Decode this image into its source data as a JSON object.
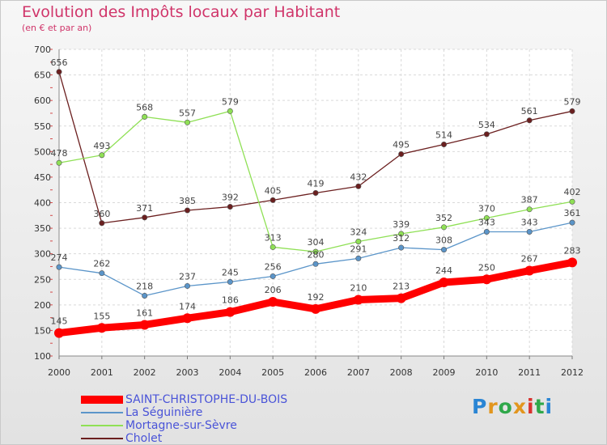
{
  "header": {
    "title": "Evolution des Impôts locaux par Habitant",
    "subtitle": "(en € et par an)"
  },
  "logo": {
    "text": "Proxiti",
    "letters": [
      "P",
      "r",
      "o",
      "x",
      "i",
      "t",
      "i"
    ],
    "colors": [
      "#2a85d4",
      "#e2961e",
      "#2fa84a",
      "#e2961e",
      "#d8322e",
      "#2fa84a",
      "#2a85d4"
    ]
  },
  "chart_data": {
    "type": "line",
    "title": "Evolution des Impôts locaux par Habitant",
    "subtitle": "(en € et par an)",
    "xlabel": "",
    "ylabel": "",
    "x": [
      "2000",
      "2001",
      "2002",
      "2003",
      "2004",
      "2005",
      "2006",
      "2007",
      "2008",
      "2009",
      "2010",
      "2011",
      "2012"
    ],
    "ylim": [
      100,
      700
    ],
    "yticks": [
      100,
      150,
      200,
      250,
      300,
      350,
      400,
      450,
      500,
      550,
      600,
      650,
      700
    ],
    "grid": true,
    "legend_position": "bottom-left",
    "series": [
      {
        "name": "SAINT-CHRISTOPHE-DU-BOIS",
        "color": "#ff0000",
        "values": [
          145,
          155,
          161,
          174,
          186,
          206,
          192,
          210,
          213,
          244,
          250,
          267,
          283
        ]
      },
      {
        "name": "La Séguinière",
        "color": "#5b95c9",
        "values": [
          274,
          262,
          218,
          237,
          245,
          256,
          280,
          291,
          312,
          308,
          343,
          343,
          361
        ]
      },
      {
        "name": "Mortagne-sur-Sèvre",
        "color": "#8fe055",
        "values": [
          478,
          493,
          568,
          557,
          579,
          313,
          304,
          324,
          339,
          352,
          370,
          387,
          402
        ]
      },
      {
        "name": "Cholet",
        "color": "#6b1f1f",
        "values": [
          656,
          360,
          371,
          385,
          392,
          405,
          419,
          432,
          495,
          514,
          534,
          561,
          579
        ]
      }
    ]
  }
}
